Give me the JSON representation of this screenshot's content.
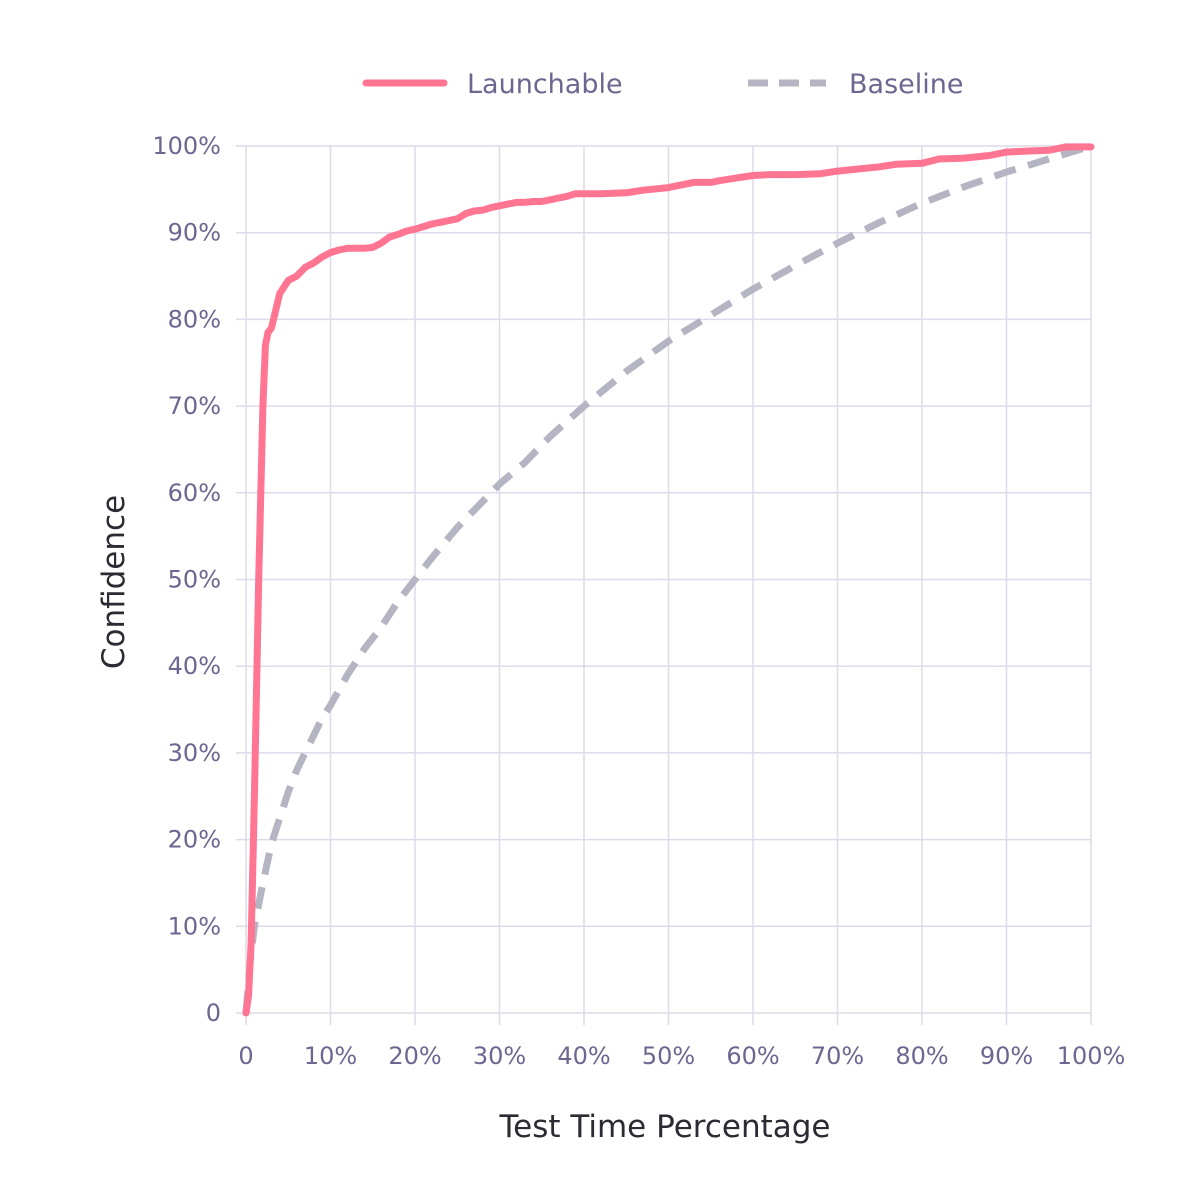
{
  "chart_data": {
    "type": "line",
    "xlabel": "Test Time Percentage",
    "ylabel": "Confidence",
    "xlim": [
      0,
      100
    ],
    "ylim": [
      0,
      100
    ],
    "x_ticks": [
      "0",
      "10%",
      "20%",
      "30%",
      "40%",
      "50%",
      "60%",
      "70%",
      "80%",
      "90%",
      "100%"
    ],
    "y_ticks": [
      "0",
      "10%",
      "20%",
      "30%",
      "40%",
      "50%",
      "60%",
      "70%",
      "80%",
      "90%",
      "100%"
    ],
    "grid": true,
    "legend_position": "top",
    "series": [
      {
        "name": "Launchable",
        "color": "#ff7592",
        "style": "solid",
        "x": [
          0,
          0.3,
          0.6,
          1,
          1.5,
          2,
          2.3,
          2.6,
          3,
          3.5,
          4,
          5,
          6,
          7,
          8,
          9,
          10,
          11,
          12,
          13,
          14,
          15,
          16,
          17,
          18,
          19,
          20,
          21,
          22,
          23,
          24,
          25,
          26,
          27,
          28,
          29,
          30,
          31,
          32,
          33,
          34,
          35,
          36,
          37,
          38,
          39,
          40,
          42,
          45,
          47,
          50,
          52,
          53,
          55,
          56,
          58,
          60,
          62,
          65,
          68,
          70,
          72,
          75,
          77,
          80,
          82,
          85,
          88,
          90,
          92,
          95,
          97,
          100
        ],
        "y": [
          0,
          2,
          8,
          25,
          50,
          70,
          77,
          78.5,
          79,
          81,
          83,
          84.5,
          85,
          86,
          86.5,
          87.2,
          87.7,
          88,
          88.2,
          88.2,
          88.2,
          88.3,
          88.8,
          89.5,
          89.8,
          90.2,
          90.4,
          90.7,
          91,
          91.2,
          91.4,
          91.6,
          92.2,
          92.5,
          92.6,
          92.9,
          93.1,
          93.3,
          93.5,
          93.5,
          93.6,
          93.6,
          93.8,
          94,
          94.2,
          94.5,
          94.5,
          94.5,
          94.6,
          94.9,
          95.2,
          95.6,
          95.8,
          95.8,
          96,
          96.3,
          96.6,
          96.7,
          96.7,
          96.8,
          97.1,
          97.3,
          97.6,
          97.9,
          98,
          98.5,
          98.6,
          98.9,
          99.3,
          99.4,
          99.5,
          99.9,
          99.9
        ]
      },
      {
        "name": "Baseline",
        "color": "#b5b4c2",
        "style": "dashed",
        "x": [
          0,
          0.5,
          1,
          2,
          3,
          4,
          5,
          6,
          7,
          8,
          9,
          10,
          12,
          14,
          16,
          18,
          20,
          22,
          25,
          28,
          30,
          33,
          36,
          40,
          45,
          50,
          55,
          60,
          65,
          70,
          75,
          80,
          85,
          90,
          95,
          100
        ],
        "y": [
          0,
          6,
          10,
          15,
          19.5,
          22.5,
          25.5,
          28,
          30,
          32,
          34,
          35.5,
          39,
          42,
          44.5,
          47.5,
          50,
          52.5,
          56,
          59,
          61,
          63.5,
          66.5,
          70,
          74,
          77.5,
          80.5,
          83.5,
          86.2,
          88.8,
          91.2,
          93.4,
          95.3,
          97,
          98.5,
          100
        ]
      }
    ]
  }
}
